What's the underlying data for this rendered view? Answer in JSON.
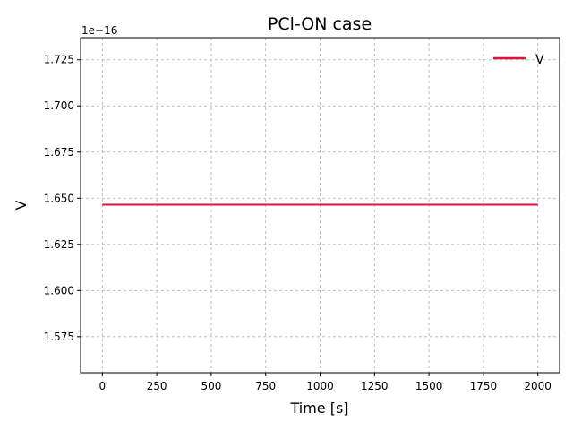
{
  "chart_data": {
    "type": "line",
    "title": "PCl-ON case",
    "xlabel": "Time [s]",
    "ylabel": "V",
    "offset_label": "1e−16",
    "xlim": [
      -100,
      2100
    ],
    "ylim": [
      1.5555,
      1.737
    ],
    "xticks": [
      0,
      250,
      500,
      750,
      1000,
      1250,
      1500,
      1750,
      2000
    ],
    "xtick_labels": [
      "0",
      "250",
      "500",
      "750",
      "1000",
      "1250",
      "1500",
      "1750",
      "2000"
    ],
    "yticks": [
      1.575,
      1.6,
      1.625,
      1.65,
      1.675,
      1.7,
      1.725
    ],
    "ytick_labels": [
      "1.575",
      "1.600",
      "1.625",
      "1.650",
      "1.675",
      "1.700",
      "1.725"
    ],
    "grid": true,
    "legend_position": "top-right",
    "series": [
      {
        "name": "V",
        "color": "#dc143c",
        "x": [
          0,
          2000
        ],
        "y": [
          1.6465,
          1.6465
        ]
      }
    ]
  }
}
